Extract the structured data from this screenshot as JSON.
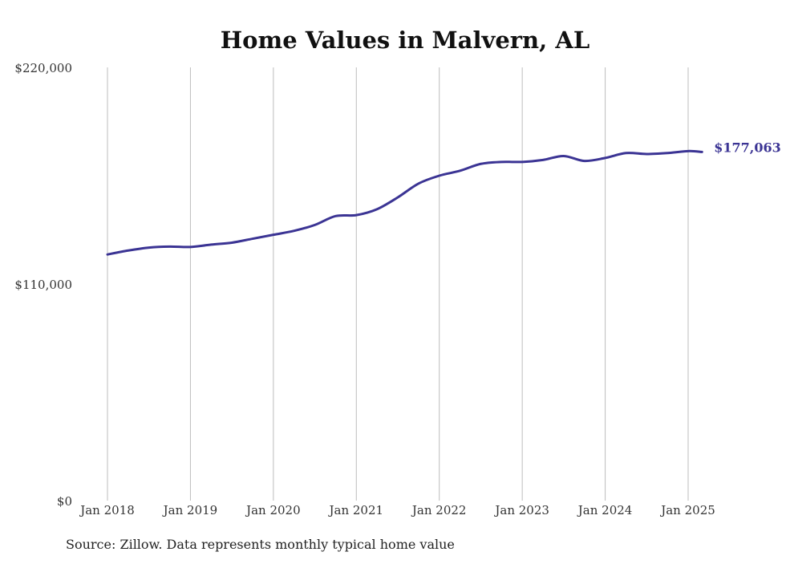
{
  "chart_data": {
    "type": "line",
    "title": "Home Values in Malvern, AL",
    "xlabel": "",
    "ylabel": "",
    "ylim": [
      0,
      220000
    ],
    "y_ticks": [
      {
        "value": 0,
        "label": "$0"
      },
      {
        "value": 110000,
        "label": "$110,000"
      },
      {
        "value": 220000,
        "label": "$220,000"
      }
    ],
    "x_ticks": [
      {
        "date": "2018-01",
        "label": "Jan 2018"
      },
      {
        "date": "2019-01",
        "label": "Jan 2019"
      },
      {
        "date": "2020-01",
        "label": "Jan 2020"
      },
      {
        "date": "2021-01",
        "label": "Jan 2021"
      },
      {
        "date": "2022-01",
        "label": "Jan 2022"
      },
      {
        "date": "2023-01",
        "label": "Jan 2023"
      },
      {
        "date": "2024-01",
        "label": "Jan 2024"
      },
      {
        "date": "2025-01",
        "label": "Jan 2025"
      }
    ],
    "grid": {
      "vertical": true,
      "horizontal": false
    },
    "legend": "none",
    "series": [
      {
        "color": "#3b3494",
        "end_label": "$177,063",
        "points": [
          {
            "x": "2018-01",
            "y": 125000
          },
          {
            "x": "2018-04",
            "y": 127000
          },
          {
            "x": "2018-07",
            "y": 128500
          },
          {
            "x": "2018-10",
            "y": 129000
          },
          {
            "x": "2019-01",
            "y": 128800
          },
          {
            "x": "2019-04",
            "y": 130000
          },
          {
            "x": "2019-07",
            "y": 131000
          },
          {
            "x": "2019-10",
            "y": 133000
          },
          {
            "x": "2020-01",
            "y": 135000
          },
          {
            "x": "2020-04",
            "y": 137000
          },
          {
            "x": "2020-07",
            "y": 140000
          },
          {
            "x": "2020-10",
            "y": 144500
          },
          {
            "x": "2021-01",
            "y": 145000
          },
          {
            "x": "2021-04",
            "y": 148000
          },
          {
            "x": "2021-07",
            "y": 154000
          },
          {
            "x": "2021-10",
            "y": 161000
          },
          {
            "x": "2022-01",
            "y": 165000
          },
          {
            "x": "2022-04",
            "y": 167500
          },
          {
            "x": "2022-07",
            "y": 171000
          },
          {
            "x": "2022-10",
            "y": 172000
          },
          {
            "x": "2023-01",
            "y": 172000
          },
          {
            "x": "2023-04",
            "y": 173000
          },
          {
            "x": "2023-07",
            "y": 175000
          },
          {
            "x": "2023-10",
            "y": 172500
          },
          {
            "x": "2024-01",
            "y": 174000
          },
          {
            "x": "2024-04",
            "y": 176500
          },
          {
            "x": "2024-07",
            "y": 176000
          },
          {
            "x": "2024-10",
            "y": 176500
          },
          {
            "x": "2025-01",
            "y": 177500
          },
          {
            "x": "2025-03",
            "y": 177063
          }
        ]
      }
    ],
    "source": "Source: Zillow. Data represents monthly typical home value"
  }
}
